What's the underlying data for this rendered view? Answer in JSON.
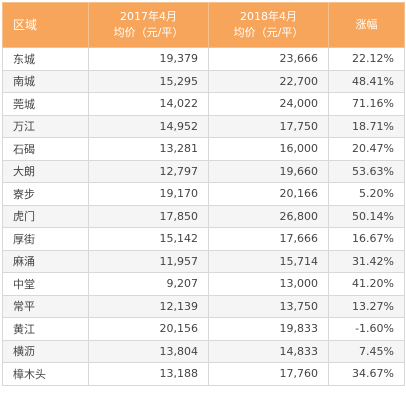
{
  "header": {
    "area": "区域",
    "y2017_line1": "2017年4月",
    "y2017_line2": "均价（元/平）",
    "y2018_line1": "2018年4月",
    "y2018_line2": "均价（元/平）",
    "change": "涨幅"
  },
  "rows": [
    {
      "area": "东城",
      "p2017": "19,379",
      "p2018": "23,666",
      "change": "22.12%"
    },
    {
      "area": "南城",
      "p2017": "15,295",
      "p2018": "22,700",
      "change": "48.41%"
    },
    {
      "area": "莞城",
      "p2017": "14,022",
      "p2018": "24,000",
      "change": "71.16%"
    },
    {
      "area": "万江",
      "p2017": "14,952",
      "p2018": "17,750",
      "change": "18.71%"
    },
    {
      "area": "石碣",
      "p2017": "13,281",
      "p2018": "16,000",
      "change": "20.47%"
    },
    {
      "area": "大朗",
      "p2017": "12,797",
      "p2018": "19,660",
      "change": "53.63%"
    },
    {
      "area": "寮步",
      "p2017": "19,170",
      "p2018": "20,166",
      "change": "5.20%"
    },
    {
      "area": "虎门",
      "p2017": "17,850",
      "p2018": "26,800",
      "change": "50.14%"
    },
    {
      "area": "厚街",
      "p2017": "15,142",
      "p2018": "17,666",
      "change": "16.67%"
    },
    {
      "area": "麻涌",
      "p2017": "11,957",
      "p2018": "15,714",
      "change": "31.42%"
    },
    {
      "area": "中堂",
      "p2017": "9,207",
      "p2018": "13,000",
      "change": "41.20%"
    },
    {
      "area": "常平",
      "p2017": "12,139",
      "p2018": "13,750",
      "change": "13.27%"
    },
    {
      "area": "黄江",
      "p2017": "20,156",
      "p2018": "19,833",
      "change": "-1.60%"
    },
    {
      "area": "横沥",
      "p2017": "13,804",
      "p2018": "14,833",
      "change": "7.45%"
    },
    {
      "area": "樟木头",
      "p2017": "13,188",
      "p2018": "17,760",
      "change": "34.67%"
    }
  ]
}
